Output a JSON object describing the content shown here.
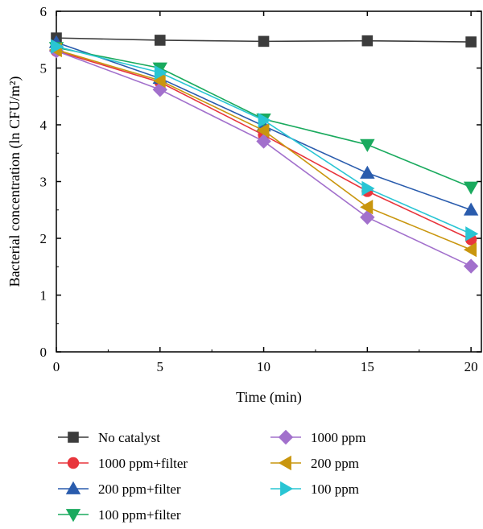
{
  "chart_data": {
    "type": "line",
    "title": "",
    "xlabel": "Time (min)",
    "ylabel": "Bacterial concentration (ln CFU/m²)",
    "x": [
      0,
      5,
      10,
      15,
      20
    ],
    "xlim": [
      0,
      20.5
    ],
    "ylim": [
      0,
      6
    ],
    "xticks": [
      "0",
      "5",
      "10",
      "15",
      "20"
    ],
    "yticks": [
      "0",
      "1",
      "2",
      "3",
      "4",
      "5",
      "6"
    ],
    "grid": false,
    "legend_position": "bottom",
    "series": [
      {
        "name": "No catalyst",
        "color": "#3c3c3c",
        "marker": "square",
        "values": [
          5.53,
          5.49,
          5.47,
          5.48,
          5.46
        ]
      },
      {
        "name": "1000 ppm+filter",
        "color": "#e8353c",
        "marker": "circle",
        "values": [
          5.3,
          4.75,
          3.82,
          2.83,
          1.98
        ]
      },
      {
        "name": "200 ppm+filter",
        "color": "#2a5cad",
        "marker": "triangle-up",
        "values": [
          5.45,
          4.82,
          3.98,
          3.15,
          2.5
        ]
      },
      {
        "name": "100 ppm+filter",
        "color": "#1aaa5e",
        "marker": "triangle-down",
        "values": [
          5.36,
          5.0,
          4.1,
          3.65,
          2.9
        ]
      },
      {
        "name": "1000 ppm",
        "color": "#a270cc",
        "marker": "diamond",
        "values": [
          5.3,
          4.62,
          3.71,
          2.37,
          1.51
        ]
      },
      {
        "name": "200 ppm",
        "color": "#c9960e",
        "marker": "triangle-left",
        "values": [
          5.32,
          4.78,
          3.9,
          2.55,
          1.8
        ]
      },
      {
        "name": "100 ppm",
        "color": "#29c5d4",
        "marker": "triangle-right",
        "values": [
          5.38,
          4.92,
          4.08,
          2.88,
          2.08
        ]
      }
    ],
    "legend_order": [
      [
        "No catalyst",
        "1000 ppm+filter",
        "200 ppm+filter",
        "100 ppm+filter"
      ],
      [
        "1000 ppm",
        "200 ppm",
        "100 ppm"
      ]
    ]
  }
}
